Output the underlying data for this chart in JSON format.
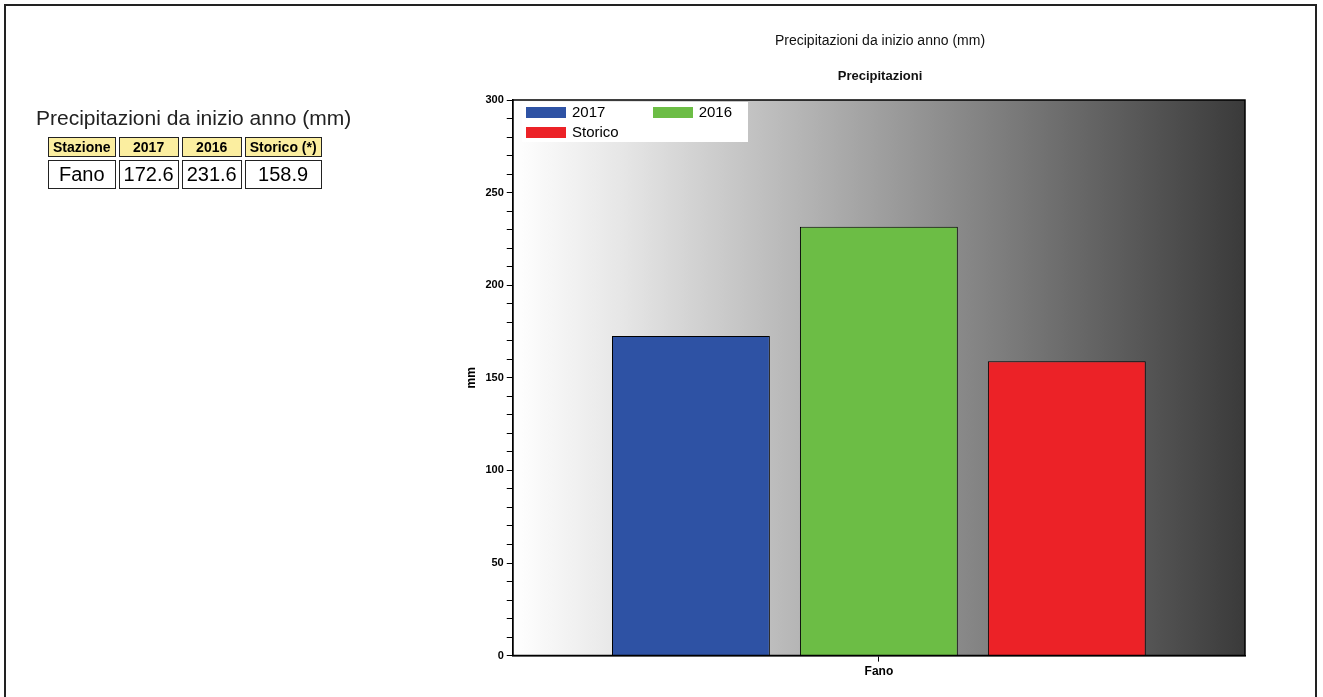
{
  "chart_data": [
    {
      "type": "other",
      "title": "Precipitazioni da inizio anno (mm)",
      "annotations": [
        "Stazione",
        "2017",
        "2016",
        "Storico (*)",
        "Fano",
        "172.6",
        "231.6",
        "158.9"
      ]
    },
    {
      "type": "bar",
      "title": "Precipitazioni da inizio anno (mm)",
      "subtitle": "Precipitazioni",
      "ylabel": "mm",
      "categories": [
        "Fano"
      ],
      "series": [
        {
          "name": "2017",
          "color": "#2e52a4",
          "values": [
            172.6
          ]
        },
        {
          "name": "2016",
          "color": "#6cbd45",
          "values": [
            231.6
          ]
        },
        {
          "name": "Storico",
          "color": "#ec2227",
          "values": [
            158.9
          ]
        }
      ],
      "ylim": [
        0,
        300
      ],
      "yticks": [
        0,
        {
          "value": 10,
          "label": null
        },
        {
          "value": 20,
          "label": null
        },
        {
          "value": 30,
          "label": null
        },
        {
          "value": 40,
          "label": null
        },
        50,
        {
          "value": 60,
          "label": null
        },
        {
          "value": 70,
          "label": null
        },
        {
          "value": 80,
          "label": null
        },
        {
          "value": 90,
          "label": null
        },
        100,
        {
          "value": 110,
          "label": null
        },
        {
          "value": 120,
          "label": null
        },
        {
          "value": 130,
          "label": null
        },
        {
          "value": 140,
          "label": null
        },
        150,
        {
          "value": 160,
          "label": null
        },
        {
          "value": 170,
          "label": null
        },
        {
          "value": 180,
          "label": null
        },
        {
          "value": 190,
          "label": null
        },
        200,
        {
          "value": 210,
          "label": null
        },
        {
          "value": 220,
          "label": null
        },
        {
          "value": 230,
          "label": null
        },
        {
          "value": 240,
          "label": null
        },
        250,
        {
          "value": 260,
          "label": null
        },
        {
          "value": 270,
          "label": null
        },
        {
          "value": 280,
          "label": null
        },
        {
          "value": 290,
          "label": null
        },
        300
      ],
      "grid": false,
      "legend": "top left"
    }
  ]
}
